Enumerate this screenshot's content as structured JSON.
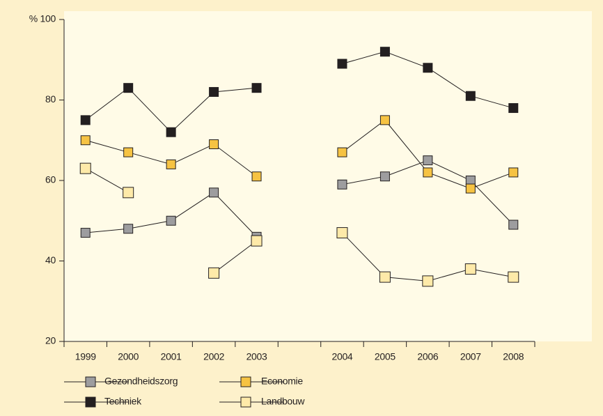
{
  "chart_data": {
    "type": "line",
    "categories": [
      "1999",
      "2000",
      "2001",
      "2002",
      "2003",
      null,
      "2004",
      "2005",
      "2006",
      "2007",
      "2008"
    ],
    "series": [
      {
        "name": "Gezondheidszorg",
        "color": "#9d9d9f",
        "values": [
          47,
          48,
          50,
          57,
          46,
          null,
          59,
          61,
          65,
          60,
          49
        ]
      },
      {
        "name": "Economie",
        "color": "#f6c343",
        "values": [
          70,
          67,
          64,
          69,
          61,
          null,
          67,
          75,
          62,
          58,
          62
        ]
      },
      {
        "name": "Techniek",
        "color": "#231f20",
        "values": [
          75,
          83,
          72,
          82,
          83,
          null,
          89,
          92,
          88,
          81,
          78
        ]
      },
      {
        "name": "Landbouw",
        "color": "#feeaa9",
        "values": [
          63,
          57,
          null,
          37,
          45,
          null,
          47,
          36,
          35,
          38,
          36
        ]
      }
    ],
    "ylim": [
      20,
      100
    ],
    "yticks": [
      20,
      40,
      60,
      80,
      {
        "value": 100,
        "label": "% 100"
      }
    ]
  }
}
